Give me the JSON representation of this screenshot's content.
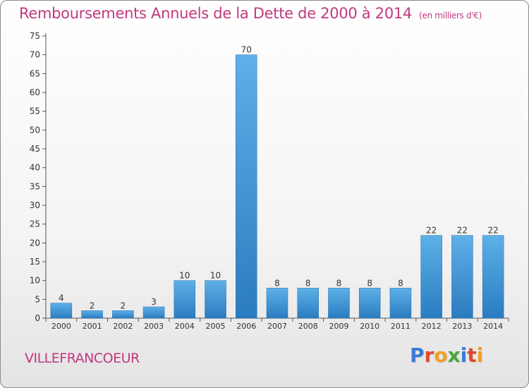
{
  "header": {
    "title": "Remboursements Annuels de la Dette de 2000 à 2014",
    "unit": "(en milliers d'€)"
  },
  "footer": {
    "commune": "VILLEFRANCOEUR",
    "brand": "Proxiti"
  },
  "colors": {
    "title": "#c0397d",
    "bar_light": "#5eb0e8",
    "bar_dark": "#2a7cc0",
    "brand_letters": [
      "#3a7bd5",
      "#e04a2f",
      "#f0a020",
      "#4aa43a",
      "#3a7bd5",
      "#e04a2f",
      "#f0a020"
    ]
  },
  "chart_data": {
    "type": "bar",
    "categories": [
      "2000",
      "2001",
      "2002",
      "2003",
      "2004",
      "2005",
      "2006",
      "2007",
      "2008",
      "2009",
      "2010",
      "2011",
      "2012",
      "2013",
      "2014"
    ],
    "values": [
      4,
      2,
      2,
      3,
      10,
      10,
      70,
      8,
      8,
      8,
      8,
      8,
      22,
      22,
      22
    ],
    "yticks": [
      0,
      5,
      10,
      15,
      20,
      25,
      30,
      35,
      40,
      45,
      50,
      55,
      60,
      65,
      70,
      75
    ],
    "ylim": [
      0,
      75
    ],
    "grid": false
  }
}
